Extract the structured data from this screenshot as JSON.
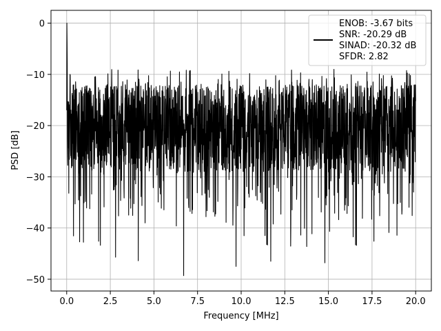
{
  "chart_data": {
    "type": "line",
    "xlabel": "Frequency [MHz]",
    "ylabel": "PSD [dB]",
    "xlim": [
      -0.9,
      20.9
    ],
    "ylim": [
      -52.3,
      2.5
    ],
    "x_ticks": [
      0.0,
      2.5,
      5.0,
      7.5,
      10.0,
      12.5,
      15.0,
      17.5,
      20.0
    ],
    "x_tick_labels": [
      "0.0",
      "2.5",
      "5.0",
      "7.5",
      "10.0",
      "12.5",
      "15.0",
      "17.5",
      "20.0"
    ],
    "y_ticks": [
      0,
      -10,
      -20,
      -30,
      -40,
      -50
    ],
    "y_tick_labels": [
      "0",
      "−10",
      "−20",
      "−30",
      "−40",
      "−50"
    ],
    "grid": true,
    "legend_position": "top-right",
    "line_color": "#000000",
    "series": [
      {
        "x_range": [
          0.0,
          20.0
        ],
        "num_points": 2000,
        "peak": {
          "x": 0.0,
          "y": 0.0
        },
        "typical_range_db": [
          -28,
          -12
        ],
        "annotated_minima": [
          {
            "x": 2.8,
            "y": -45.7
          },
          {
            "x": 4.1,
            "y": -46.4
          },
          {
            "x": 6.7,
            "y": -49.3
          },
          {
            "x": 9.7,
            "y": -47.5
          },
          {
            "x": 11.7,
            "y": -46.5
          },
          {
            "x": 14.8,
            "y": -46.8
          }
        ]
      }
    ],
    "legend": [
      "ENOB: -3.67 bits",
      "SNR: -20.29 dB",
      "SINAD: -20.32 dB",
      "SFDR: 2.82"
    ]
  }
}
